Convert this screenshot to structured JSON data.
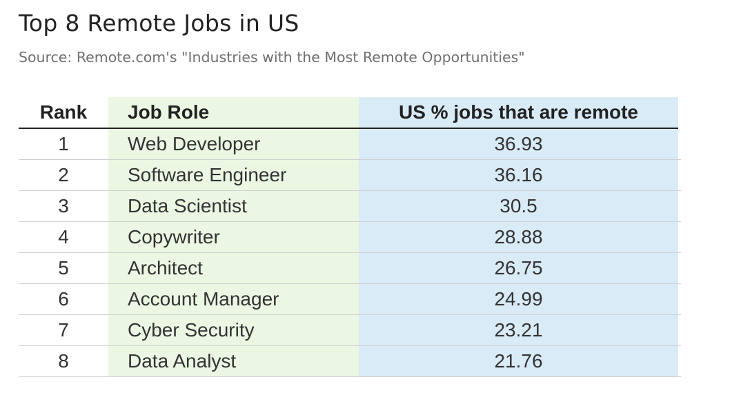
{
  "title": "Top 8 Remote Jobs in US",
  "subtitle": "Source: Remote.com's \"Industries with the Most Remote Opportunities\"",
  "colors": {
    "role_column_bg": "#ebf7e3",
    "value_column_bg": "#d9ebf7",
    "header_rule": "#222222",
    "row_rule": "#cfcfcf",
    "subtitle_text": "#6f6f6f"
  },
  "chart_data": {
    "type": "table",
    "title": "Top 8 Remote Jobs in US",
    "subtitle": "Source: Remote.com's \"Industries with the Most Remote Opportunities\"",
    "columns": [
      "Rank",
      "Job Role",
      "US % jobs that are remote"
    ],
    "rows": [
      {
        "rank": "1",
        "role": "Web Developer",
        "pct": "36.93"
      },
      {
        "rank": "2",
        "role": "Software Engineer",
        "pct": "36.16"
      },
      {
        "rank": "3",
        "role": "Data Scientist",
        "pct": "30.5"
      },
      {
        "rank": "4",
        "role": "Copywriter",
        "pct": "28.88"
      },
      {
        "rank": "5",
        "role": "Architect",
        "pct": "26.75"
      },
      {
        "rank": "6",
        "role": "Account Manager",
        "pct": "24.99"
      },
      {
        "rank": "7",
        "role": "Cyber Security",
        "pct": "23.21"
      },
      {
        "rank": "8",
        "role": "Data Analyst",
        "pct": "21.76"
      }
    ]
  }
}
